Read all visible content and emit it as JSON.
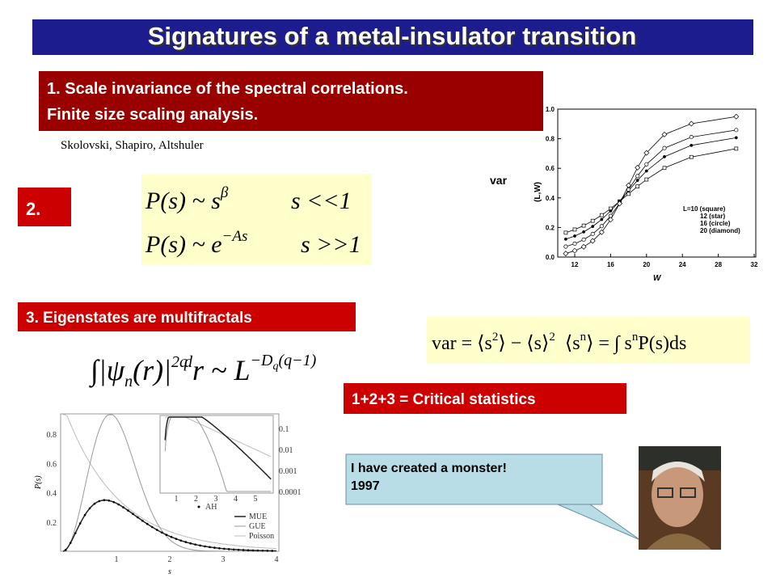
{
  "title": "Signatures of a metal-insulator transition",
  "box1": {
    "lines": [
      "1.  Scale invariance of the spectral correlations.",
      "Finite size scaling analysis."
    ]
  },
  "citation": "Skolovski, Shapiro, Altshuler",
  "box2": "2.",
  "formula_small_s": {
    "lhs": "P(s) ~ s",
    "exp": "β",
    "cond": "s <<1"
  },
  "formula_large_s": {
    "lhs": "P(s) ~ e",
    "exp": "−As",
    "cond": "s >>1"
  },
  "var_plot": {
    "var_label": "var",
    "y_label": "(L,W)",
    "x_label": "W",
    "yticks": [
      "0.0",
      "0.2",
      "0.4",
      "0.6",
      "0.8",
      "1.0"
    ],
    "xticks": [
      "12",
      "16",
      "20",
      "24",
      "28",
      "32"
    ],
    "legend": [
      "L=10 (square)",
      "12 (star)",
      "16 (circle)",
      "20 (diamond)"
    ]
  },
  "box3": "3. Eigenstates are multifractals",
  "multifractal": {
    "lhs": "∫|ψ",
    "sub": "n",
    "mid": "(r)|",
    "exp": "2q",
    "d": "d",
    "rest": "r ~ L",
    "exp2": "−D",
    "sub2": "q",
    "exp3": "(q−1)"
  },
  "variance": {
    "lhs": "var = ⟨s",
    "sq": "2",
    "mid": "⟩ − ⟨s⟩",
    "sq2": "2",
    "mom": "⟨s",
    "n": "n",
    "rhs": "⟩ = ∫ s",
    "n2": "n",
    "end": "P(s)ds"
  },
  "summary": "1+2+3 = Critical statistics",
  "ps_plot": {
    "y_label": "P(s)",
    "x_label": "s",
    "yticks": [
      "0.2",
      "0.4",
      "0.6",
      "0.8"
    ],
    "xticks": [
      "1",
      "2",
      "3",
      "4"
    ],
    "inset_yticks": [
      "0.1",
      "0.01",
      "0.001",
      "0.0001"
    ],
    "inset_xticks": [
      "1",
      "2",
      "3",
      "4",
      "5"
    ],
    "legend": [
      "AH",
      "MUE",
      "GUE",
      "Poisson"
    ]
  },
  "callout": {
    "lines": [
      "I have created a monster!",
      "1997"
    ]
  }
}
